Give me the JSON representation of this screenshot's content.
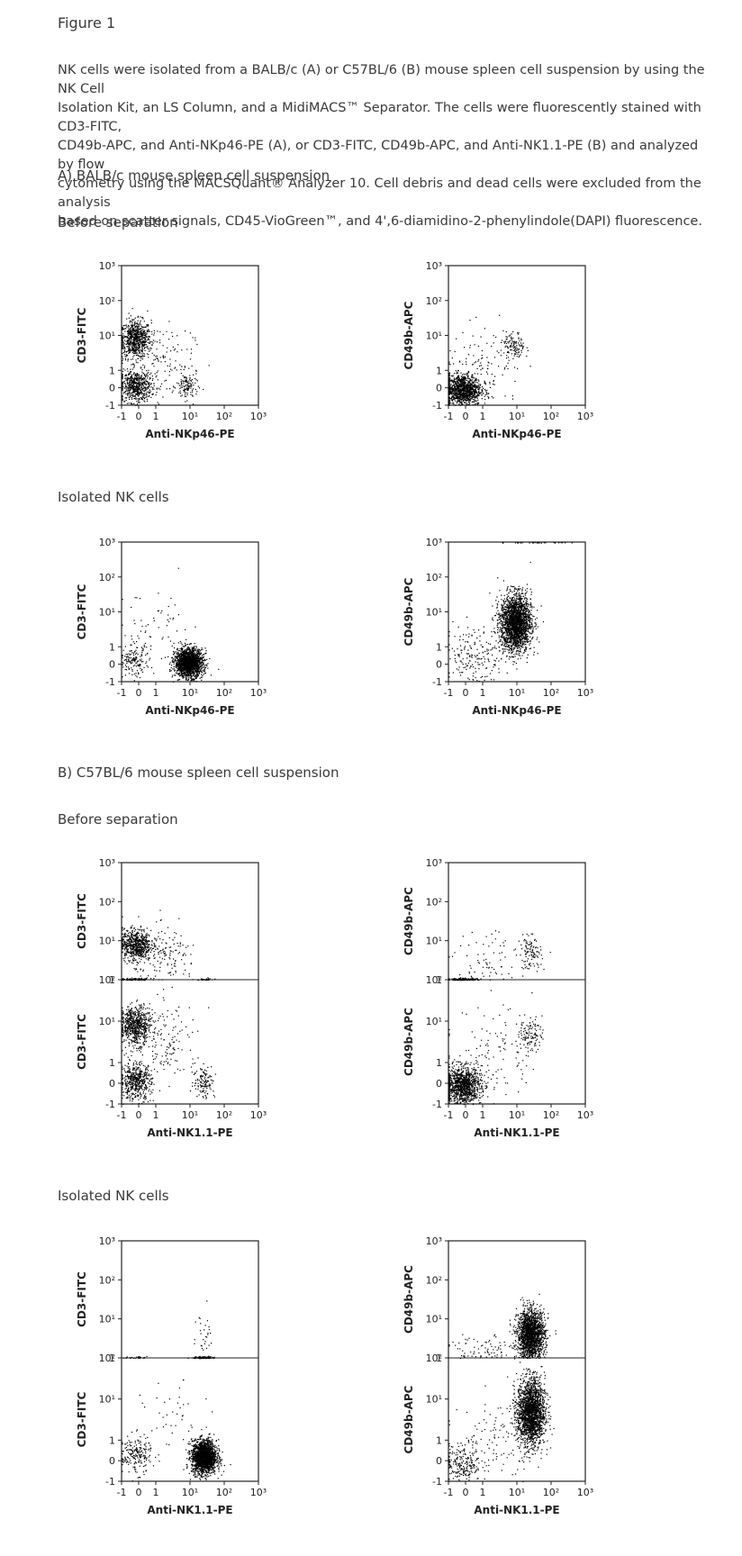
{
  "figure_title": "Figure 1",
  "caption": [
    "NK cells were isolated from a BALB/c (A) or C57BL/6 (B) mouse spleen cell suspension by using the NK Cell",
    "Isolation Kit, an LS Column, and a MidiMACS™ Separator. The cells were fluorescently stained with CD3-FITC,",
    "CD49b-APC, and Anti-NKp46-PE (A), or CD3-FITC, CD49b-APC, and Anti-NK1.1-PE (B) and analyzed by flow",
    "cytometry using the MACSQuant® Analyzer 10. Cell debris and dead cells were excluded from the analysis",
    "based on scatter signals, CD45-VioGreen™, and 4',6-diamidino-2-phenylindole(DAPI) fluorescence."
  ],
  "sections": {
    "a_title": "A) BALB/c mouse spleen cell suspension",
    "a_before": "Before separation",
    "a_isolated": "Isolated NK cells",
    "b_title": "B) C57BL/6 mouse spleen cell suspension",
    "b_before": "Before separation",
    "b_isolated": "Isolated NK cells"
  },
  "tick_labels": {
    "x": [
      "-1",
      "0",
      "1",
      "10¹",
      "10²",
      "10³"
    ],
    "y_full": [
      "-1",
      "0",
      "1",
      "10¹",
      "10²",
      "10³"
    ],
    "y_split_top": [
      "1",
      "10¹",
      "10²",
      "10³"
    ],
    "y_split_bottom": [
      "-1",
      "0",
      "1",
      "10¹",
      "10²"
    ]
  },
  "chart_data": [
    {
      "type": "scatter",
      "panel": "A before, left",
      "xlabel": "Anti-NKp46-PE",
      "ylabel": "CD3-FITC",
      "scale": "biexponential",
      "xlim": [
        -1,
        1000
      ],
      "ylim": [
        -1,
        1000
      ],
      "populations": [
        {
          "x": -0.2,
          "y": 8,
          "spread": [
            0.5,
            0.6
          ],
          "count": 700
        },
        {
          "x": -0.2,
          "y": 0.1,
          "spread": [
            0.5,
            0.5
          ],
          "count": 550
        },
        {
          "x": 8,
          "y": 0.1,
          "spread": [
            0.35,
            0.45
          ],
          "count": 120
        },
        {
          "x": 1,
          "y": 2,
          "spread": [
            1.2,
            1.2
          ],
          "count": 150
        }
      ]
    },
    {
      "type": "scatter",
      "panel": "A before, right",
      "xlabel": "Anti-NKp46-PE",
      "ylabel": "CD49b-APC",
      "scale": "biexponential",
      "xlim": [
        -1,
        1000
      ],
      "ylim": [
        -1,
        1000
      ],
      "populations": [
        {
          "x": -0.2,
          "y": -0.1,
          "spread": [
            0.6,
            0.5
          ],
          "count": 1100
        },
        {
          "x": 8,
          "y": 5,
          "spread": [
            0.35,
            0.45
          ],
          "count": 120
        },
        {
          "x": 1,
          "y": 1,
          "spread": [
            1.3,
            1.3
          ],
          "count": 120
        }
      ]
    },
    {
      "type": "scatter",
      "panel": "A isolated, left",
      "xlabel": "Anti-NKp46-PE",
      "ylabel": "CD3-FITC",
      "scale": "biexponential",
      "xlim": [
        -1,
        1000
      ],
      "ylim": [
        -1,
        1000
      ],
      "populations": [
        {
          "x": 9,
          "y": 0.1,
          "spread": [
            0.45,
            0.45
          ],
          "count": 1800
        },
        {
          "x": -0.3,
          "y": 0.2,
          "spread": [
            0.5,
            0.5
          ],
          "count": 150
        },
        {
          "x": 1,
          "y": 3,
          "spread": [
            1.2,
            1.2
          ],
          "count": 60
        }
      ]
    },
    {
      "type": "scatter",
      "panel": "A isolated, right",
      "xlabel": "Anti-NKp46-PE",
      "ylabel": "CD49b-APC",
      "scale": "biexponential",
      "xlim": [
        -1,
        1000
      ],
      "ylim": [
        -1,
        1000
      ],
      "populations": [
        {
          "x": 9,
          "y": 5,
          "spread": [
            0.5,
            0.9
          ],
          "count": 2200
        },
        {
          "x": 0.5,
          "y": 0.5,
          "spread": [
            1.0,
            1.0
          ],
          "count": 200
        },
        {
          "x": 30,
          "y": 1000,
          "spread": [
            1.0,
            0.02
          ],
          "count": 60
        }
      ]
    },
    {
      "type": "scatter",
      "panel": "B before, left",
      "xlabel": "Anti-NK1.1-PE",
      "ylabel": "CD3-FITC",
      "scale": "biexponential",
      "xlim": [
        -1,
        1000
      ],
      "split_y": {
        "top_ylim": [
          1,
          1000
        ],
        "bottom_ylim": [
          -1,
          100
        ]
      },
      "populations_top": [
        {
          "x": -0.2,
          "y": 8,
          "spread": [
            0.5,
            0.45
          ],
          "count": 650
        },
        {
          "x": 2,
          "y": 4,
          "spread": [
            1.0,
            0.8
          ],
          "count": 150
        },
        {
          "x": -0.2,
          "y": 1,
          "spread": [
            0.5,
            0.05
          ],
          "count": 220
        },
        {
          "x": 25,
          "y": 1,
          "spread": [
            0.3,
            0.05
          ],
          "count": 60
        }
      ],
      "populations_bottom": [
        {
          "x": -0.2,
          "y": 8,
          "spread": [
            0.5,
            0.5
          ],
          "count": 650
        },
        {
          "x": -0.2,
          "y": 0.1,
          "spread": [
            0.5,
            0.5
          ],
          "count": 500
        },
        {
          "x": 25,
          "y": 0.1,
          "spread": [
            0.35,
            0.45
          ],
          "count": 120
        },
        {
          "x": 2,
          "y": 3,
          "spread": [
            1.1,
            1.1
          ],
          "count": 150
        }
      ]
    },
    {
      "type": "scatter",
      "panel": "B before, right",
      "xlabel": "Anti-NK1.1-PE",
      "ylabel": "CD49b-APC",
      "scale": "biexponential",
      "xlim": [
        -1,
        1000
      ],
      "split_y": {
        "top_ylim": [
          1,
          1000
        ],
        "bottom_ylim": [
          -1,
          100
        ]
      },
      "populations_top": [
        {
          "x": -0.2,
          "y": 1,
          "spread": [
            0.5,
            0.05
          ],
          "count": 300
        },
        {
          "x": 25,
          "y": 5,
          "spread": [
            0.35,
            0.45
          ],
          "count": 100
        },
        {
          "x": 2,
          "y": 3,
          "spread": [
            1.3,
            1.0
          ],
          "count": 90
        }
      ],
      "populations_bottom": [
        {
          "x": -0.2,
          "y": -0.1,
          "spread": [
            0.6,
            0.5
          ],
          "count": 1100
        },
        {
          "x": 25,
          "y": 5,
          "spread": [
            0.35,
            0.45
          ],
          "count": 110
        },
        {
          "x": 2,
          "y": 2,
          "spread": [
            1.3,
            1.3
          ],
          "count": 120
        }
      ]
    },
    {
      "type": "scatter",
      "panel": "B isolated, left",
      "xlabel": "Anti-NK1.1-PE",
      "ylabel": "CD3-FITC",
      "scale": "biexponential",
      "xlim": [
        -1,
        1000
      ],
      "split_y": {
        "top_ylim": [
          1,
          1000
        ],
        "bottom_ylim": [
          -1,
          100
        ]
      },
      "populations_top": [
        {
          "x": 25,
          "y": 1,
          "spread": [
            0.35,
            0.05
          ],
          "count": 200
        },
        {
          "x": -0.2,
          "y": 1,
          "spread": [
            0.5,
            0.05
          ],
          "count": 40
        },
        {
          "x": 25,
          "y": 4,
          "spread": [
            0.3,
            0.8
          ],
          "count": 30
        }
      ],
      "populations_bottom": [
        {
          "x": 25,
          "y": 0.2,
          "spread": [
            0.4,
            0.45
          ],
          "count": 1900
        },
        {
          "x": -0.2,
          "y": 0.3,
          "spread": [
            0.5,
            0.5
          ],
          "count": 200
        },
        {
          "x": 3,
          "y": 3,
          "spread": [
            1.0,
            1.0
          ],
          "count": 40
        }
      ]
    },
    {
      "type": "scatter",
      "panel": "B isolated, right",
      "xlabel": "Anti-NK1.1-PE",
      "ylabel": "CD49b-APC",
      "scale": "biexponential",
      "xlim": [
        -1,
        1000
      ],
      "split_y": {
        "top_ylim": [
          1,
          1000
        ],
        "bottom_ylim": [
          -1,
          100
        ]
      },
      "populations_top": [
        {
          "x": 25,
          "y": 4,
          "spread": [
            0.45,
            0.7
          ],
          "count": 1800
        },
        {
          "x": 1,
          "y": 1.5,
          "spread": [
            1.2,
            0.6
          ],
          "count": 120
        }
      ],
      "populations_bottom": [
        {
          "x": 25,
          "y": 5,
          "spread": [
            0.45,
            0.9
          ],
          "count": 2000
        },
        {
          "x": -0.2,
          "y": -0.1,
          "spread": [
            0.6,
            0.5
          ],
          "count": 220
        },
        {
          "x": 2,
          "y": 1,
          "spread": [
            1.2,
            1.2
          ],
          "count": 120
        }
      ]
    }
  ]
}
